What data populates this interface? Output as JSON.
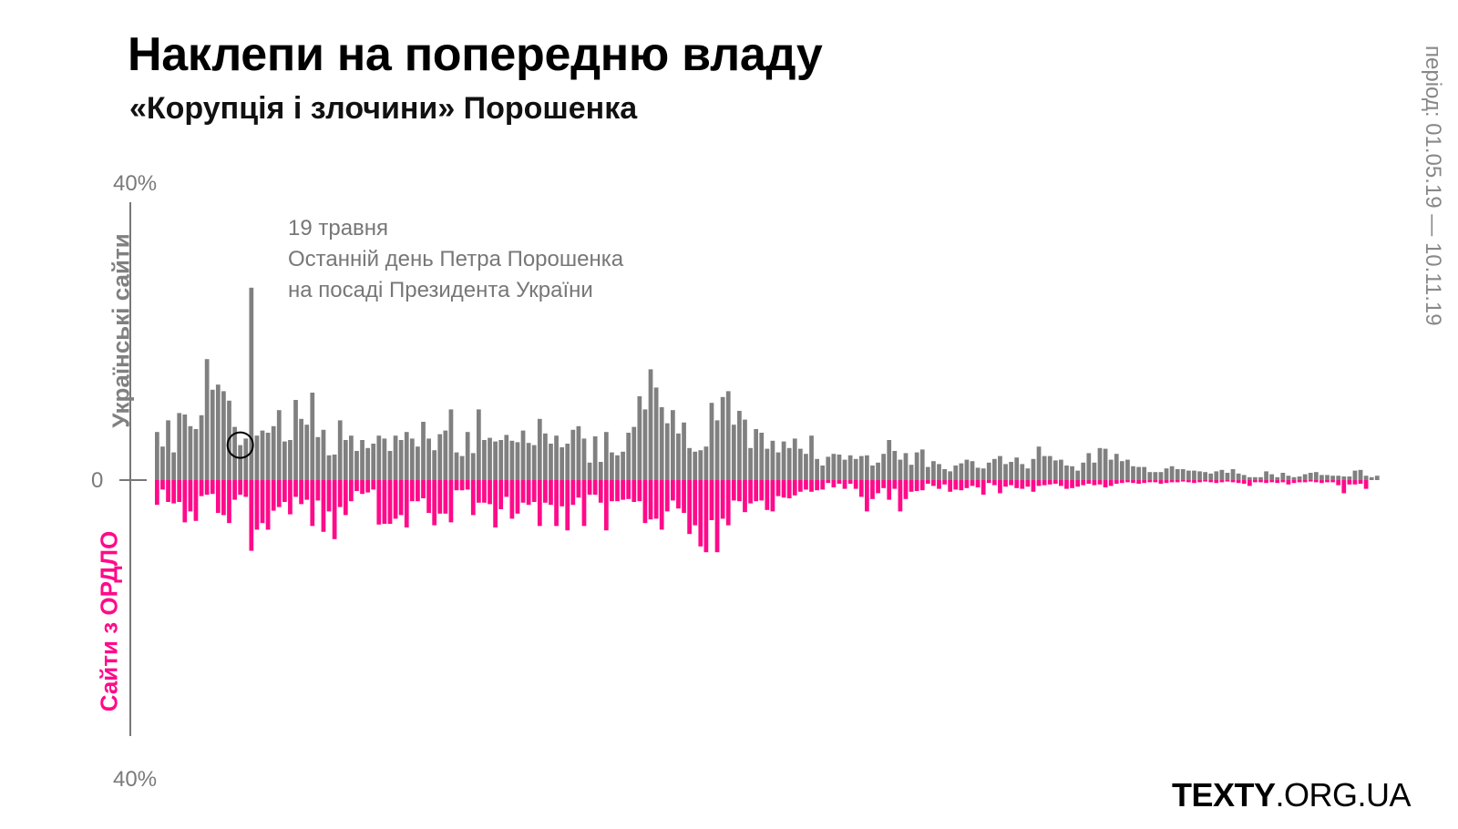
{
  "header": {
    "title": "Наклепи на попередню владу",
    "subtitle": "«Корупція і злочини» Порошенка",
    "period": "період: 01.05.19 — 10.11.19"
  },
  "brand": {
    "name_bold": "TEXTY",
    "name_rest": ".ORG.UA"
  },
  "colors": {
    "top_series": "#808080",
    "bottom_series": "#ff0a8a",
    "axis": "#777777"
  },
  "chart_data": {
    "type": "bar",
    "title": "Наклепи на попередню владу",
    "subtitle": "«Корупція і злочини» Порошенка",
    "ylabel_top": "Українські сайти",
    "ylabel_bottom": "Сайти з ОРДЛО",
    "ylim": [
      -40,
      40
    ],
    "ticks": {
      "top": "40%",
      "zero": "0",
      "bottom": "40%"
    },
    "annotation": {
      "lines": [
        "19 травня",
        "Останній день Петра Порошенка",
        "на посаді Президента України"
      ],
      "index": 15
    },
    "series": [
      {
        "name": "Українські сайти",
        "values": [
          6.6,
          4.6,
          8.2,
          3.8,
          9.2,
          9.0,
          7.4,
          7.0,
          8.9,
          16.6,
          12.4,
          13.1,
          12.2,
          10.9,
          7.3,
          4.8,
          5.7,
          26.4,
          6.1,
          6.8,
          6.5,
          7.4,
          9.6,
          5.3,
          5.5,
          11.0,
          8.4,
          7.6,
          12.0,
          5.9,
          6.9,
          3.4,
          3.5,
          8.2,
          5.5,
          6.1,
          4.0,
          5.5,
          4.4,
          5.0,
          6.1,
          5.7,
          4.0,
          6.1,
          5.5,
          6.6,
          5.7,
          4.6,
          8.0,
          5.7,
          4.1,
          6.3,
          6.8,
          9.7,
          3.8,
          3.3,
          6.6,
          3.7,
          9.7,
          5.5,
          5.8,
          5.3,
          5.5,
          6.2,
          5.4,
          5.2,
          6.8,
          5.1,
          4.8,
          8.4,
          6.4,
          5.0,
          6.1,
          4.5,
          5.0,
          6.9,
          7.4,
          5.7,
          2.4,
          6.0,
          2.5,
          6.6,
          3.8,
          3.4,
          3.9,
          6.5,
          7.3,
          11.5,
          9.7,
          15.2,
          12.7,
          10.0,
          7.8,
          9.6,
          6.4,
          7.9,
          4.4,
          3.9,
          4.1,
          4.6,
          10.6,
          8.2,
          11.4,
          12.2,
          7.6,
          9.5,
          8.3,
          4.4,
          7.0,
          6.5,
          4.3,
          5.4,
          3.8,
          5.3,
          4.4,
          5.7,
          4.3,
          3.6,
          6.1,
          2.9,
          2.0,
          3.2,
          3.6,
          3.5,
          2.8,
          3.4,
          2.9,
          3.3,
          3.4,
          2.0,
          2.4,
          3.6,
          5.5,
          4.0,
          2.8,
          3.7,
          2.1,
          3.8,
          4.2,
          1.8,
          2.6,
          2.2,
          1.5,
          1.2,
          2.0,
          2.3,
          2.8,
          2.6,
          1.7,
          1.6,
          2.4,
          2.9,
          3.3,
          2.2,
          2.5,
          3.1,
          2.2,
          1.6,
          2.9,
          4.6,
          3.3,
          3.3,
          2.7,
          2.8,
          2.0,
          1.9,
          1.3,
          2.4,
          3.7,
          2.4,
          4.4,
          4.3,
          2.8,
          3.6,
          2.6,
          2.8,
          1.9,
          1.8,
          1.8,
          1.1,
          1.1,
          1.1,
          1.6,
          1.9,
          1.5,
          1.5,
          1.3,
          1.3,
          1.2,
          1.1,
          0.9,
          1.2,
          1.4,
          1.0,
          1.5,
          0.9,
          0.7,
          0.4,
          0.4,
          0.4,
          1.2,
          0.8,
          0.4,
          1.0,
          0.6,
          0.4,
          0.5,
          0.8,
          1.0,
          1.1,
          0.7,
          0.7,
          0.6,
          0.6,
          0.5,
          0.5,
          1.3,
          1.4,
          0.6,
          0.4,
          0.6
        ],
        "color": "#808080"
      },
      {
        "name": "Сайти з ОРДЛО",
        "values": [
          3.4,
          1.3,
          3.0,
          3.2,
          3.0,
          5.8,
          4.3,
          5.6,
          2.2,
          2.0,
          1.9,
          4.5,
          4.8,
          5.9,
          2.7,
          2.0,
          2.3,
          9.7,
          6.8,
          5.9,
          6.8,
          4.2,
          3.7,
          3.0,
          4.7,
          2.3,
          3.3,
          2.7,
          6.3,
          2.8,
          7.1,
          4.3,
          8.1,
          3.7,
          4.8,
          2.9,
          1.5,
          1.9,
          1.7,
          1.3,
          6.1,
          6.0,
          6.0,
          5.3,
          4.8,
          6.5,
          2.9,
          2.9,
          2.5,
          4.5,
          6.2,
          4.6,
          4.6,
          5.8,
          1.4,
          1.4,
          1.3,
          4.8,
          3.1,
          3.1,
          3.3,
          6.5,
          4.0,
          2.3,
          5.3,
          4.6,
          3.1,
          3.4,
          3.0,
          6.3,
          3.1,
          3.4,
          6.3,
          3.6,
          6.9,
          3.4,
          2.4,
          6.3,
          2.0,
          2.0,
          3.1,
          6.9,
          2.9,
          2.9,
          2.7,
          2.6,
          3.0,
          2.9,
          5.9,
          5.4,
          5.3,
          6.8,
          4.3,
          2.8,
          3.9,
          4.5,
          7.4,
          6.2,
          9.1,
          9.9,
          5.5,
          9.9,
          5.3,
          6.2,
          2.8,
          2.9,
          4.4,
          3.2,
          2.9,
          2.8,
          4.1,
          4.3,
          2.2,
          2.4,
          2.5,
          2.1,
          1.6,
          1.3,
          1.6,
          1.4,
          1.3,
          0.4,
          1.0,
          0.5,
          1.2,
          0.5,
          1.2,
          2.3,
          4.3,
          2.6,
          1.8,
          1.1,
          2.7,
          1.2,
          4.3,
          2.6,
          1.6,
          1.5,
          1.4,
          0.5,
          0.8,
          1.2,
          0.6,
          1.6,
          1.3,
          1.4,
          1.1,
          0.8,
          1.0,
          2.0,
          0.4,
          0.7,
          1.8,
          0.9,
          0.7,
          1.1,
          1.2,
          0.9,
          1.6,
          0.8,
          0.7,
          0.6,
          0.5,
          0.8,
          1.2,
          1.1,
          0.9,
          0.7,
          0.5,
          0.7,
          0.6,
          1.0,
          0.8,
          0.5,
          0.4,
          0.3,
          0.4,
          0.5,
          0.4,
          0.3,
          0.3,
          0.5,
          0.4,
          0.3,
          0.3,
          0.2,
          0.3,
          0.4,
          0.3,
          0.2,
          0.3,
          0.4,
          0.3,
          0.2,
          0.3,
          0.4,
          0.5,
          0.8,
          0.3,
          0.3,
          0.4,
          0.3,
          0.4,
          0.3,
          0.6,
          0.4,
          0.3,
          0.3,
          0.2,
          0.3,
          0.4,
          0.3,
          0.3,
          0.7,
          1.8,
          0.6,
          0.6,
          0.5,
          1.2
        ],
        "color": "#ff0a8a"
      }
    ]
  }
}
